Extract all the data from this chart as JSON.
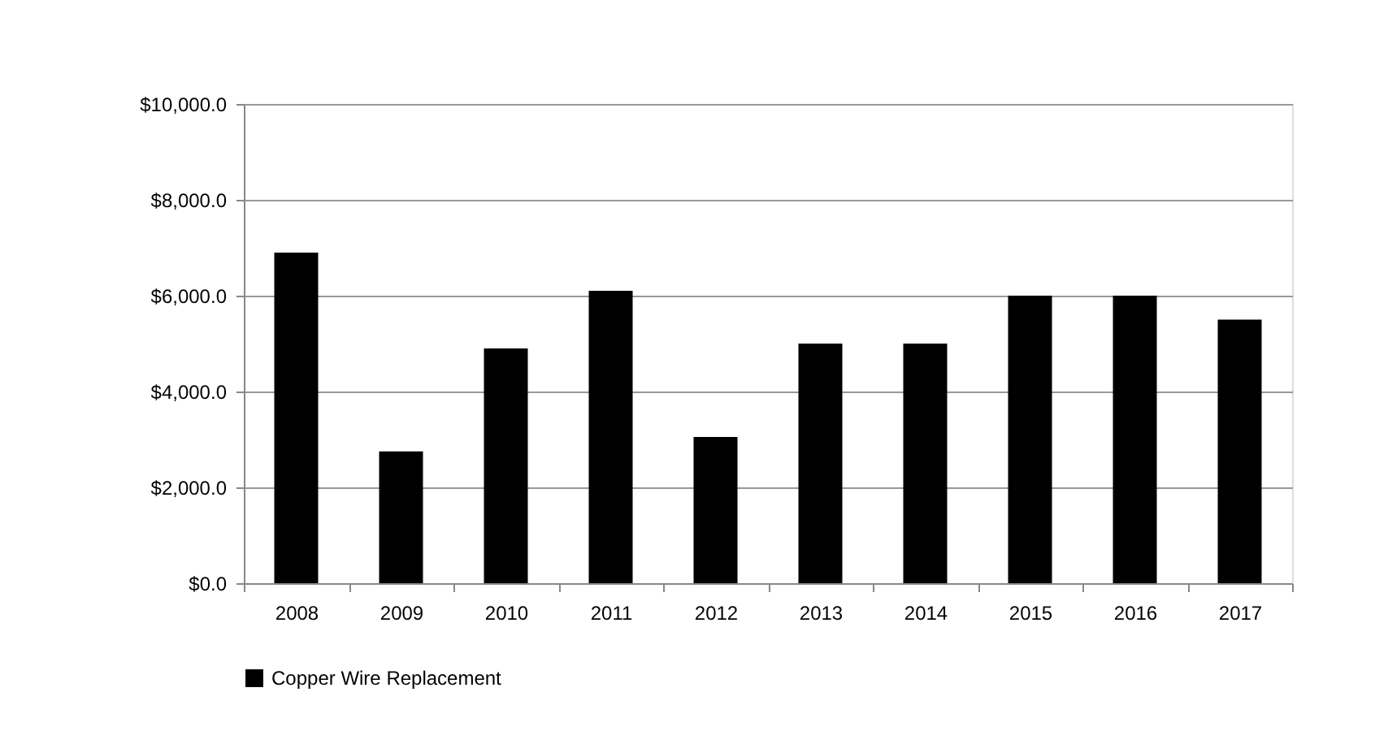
{
  "chart_data": {
    "type": "bar",
    "categories": [
      "2008",
      "2009",
      "2010",
      "2011",
      "2012",
      "2013",
      "2014",
      "2015",
      "2016",
      "2017"
    ],
    "series": [
      {
        "name": "Copper Wire Replacement",
        "color": "#000000",
        "values": [
          6900,
          2750,
          4900,
          6100,
          3050,
          5000,
          5000,
          6000,
          6000,
          5500
        ]
      }
    ],
    "ylim": [
      0,
      10000
    ],
    "yticks": [
      {
        "value": 0,
        "label": "$0.0"
      },
      {
        "value": 2000,
        "label": "$2,000.0"
      },
      {
        "value": 4000,
        "label": "$4,000.0"
      },
      {
        "value": 6000,
        "label": "$6,000.0"
      },
      {
        "value": 8000,
        "label": "$8,000.0"
      },
      {
        "value": 10000,
        "label": "$10,000.0"
      }
    ],
    "grid": "y",
    "legend": "bottom"
  }
}
